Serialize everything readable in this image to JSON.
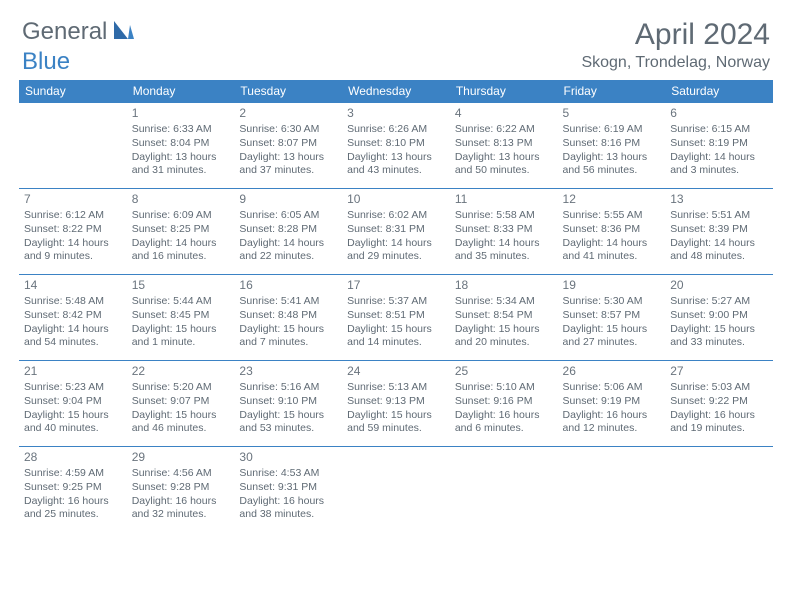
{
  "logo": {
    "general": "General",
    "blue": "Blue"
  },
  "title": "April 2024",
  "location": "Skogn, Trondelag, Norway",
  "colors": {
    "brand": "#3b82c4",
    "text": "#5f6a74",
    "bg": "#ffffff"
  },
  "weekdays": [
    "Sunday",
    "Monday",
    "Tuesday",
    "Wednesday",
    "Thursday",
    "Friday",
    "Saturday"
  ],
  "weeks": [
    [
      null,
      {
        "n": "1",
        "sr": "Sunrise: 6:33 AM",
        "ss": "Sunset: 8:04 PM",
        "d1": "Daylight: 13 hours",
        "d2": "and 31 minutes."
      },
      {
        "n": "2",
        "sr": "Sunrise: 6:30 AM",
        "ss": "Sunset: 8:07 PM",
        "d1": "Daylight: 13 hours",
        "d2": "and 37 minutes."
      },
      {
        "n": "3",
        "sr": "Sunrise: 6:26 AM",
        "ss": "Sunset: 8:10 PM",
        "d1": "Daylight: 13 hours",
        "d2": "and 43 minutes."
      },
      {
        "n": "4",
        "sr": "Sunrise: 6:22 AM",
        "ss": "Sunset: 8:13 PM",
        "d1": "Daylight: 13 hours",
        "d2": "and 50 minutes."
      },
      {
        "n": "5",
        "sr": "Sunrise: 6:19 AM",
        "ss": "Sunset: 8:16 PM",
        "d1": "Daylight: 13 hours",
        "d2": "and 56 minutes."
      },
      {
        "n": "6",
        "sr": "Sunrise: 6:15 AM",
        "ss": "Sunset: 8:19 PM",
        "d1": "Daylight: 14 hours",
        "d2": "and 3 minutes."
      }
    ],
    [
      {
        "n": "7",
        "sr": "Sunrise: 6:12 AM",
        "ss": "Sunset: 8:22 PM",
        "d1": "Daylight: 14 hours",
        "d2": "and 9 minutes."
      },
      {
        "n": "8",
        "sr": "Sunrise: 6:09 AM",
        "ss": "Sunset: 8:25 PM",
        "d1": "Daylight: 14 hours",
        "d2": "and 16 minutes."
      },
      {
        "n": "9",
        "sr": "Sunrise: 6:05 AM",
        "ss": "Sunset: 8:28 PM",
        "d1": "Daylight: 14 hours",
        "d2": "and 22 minutes."
      },
      {
        "n": "10",
        "sr": "Sunrise: 6:02 AM",
        "ss": "Sunset: 8:31 PM",
        "d1": "Daylight: 14 hours",
        "d2": "and 29 minutes."
      },
      {
        "n": "11",
        "sr": "Sunrise: 5:58 AM",
        "ss": "Sunset: 8:33 PM",
        "d1": "Daylight: 14 hours",
        "d2": "and 35 minutes."
      },
      {
        "n": "12",
        "sr": "Sunrise: 5:55 AM",
        "ss": "Sunset: 8:36 PM",
        "d1": "Daylight: 14 hours",
        "d2": "and 41 minutes."
      },
      {
        "n": "13",
        "sr": "Sunrise: 5:51 AM",
        "ss": "Sunset: 8:39 PM",
        "d1": "Daylight: 14 hours",
        "d2": "and 48 minutes."
      }
    ],
    [
      {
        "n": "14",
        "sr": "Sunrise: 5:48 AM",
        "ss": "Sunset: 8:42 PM",
        "d1": "Daylight: 14 hours",
        "d2": "and 54 minutes."
      },
      {
        "n": "15",
        "sr": "Sunrise: 5:44 AM",
        "ss": "Sunset: 8:45 PM",
        "d1": "Daylight: 15 hours",
        "d2": "and 1 minute."
      },
      {
        "n": "16",
        "sr": "Sunrise: 5:41 AM",
        "ss": "Sunset: 8:48 PM",
        "d1": "Daylight: 15 hours",
        "d2": "and 7 minutes."
      },
      {
        "n": "17",
        "sr": "Sunrise: 5:37 AM",
        "ss": "Sunset: 8:51 PM",
        "d1": "Daylight: 15 hours",
        "d2": "and 14 minutes."
      },
      {
        "n": "18",
        "sr": "Sunrise: 5:34 AM",
        "ss": "Sunset: 8:54 PM",
        "d1": "Daylight: 15 hours",
        "d2": "and 20 minutes."
      },
      {
        "n": "19",
        "sr": "Sunrise: 5:30 AM",
        "ss": "Sunset: 8:57 PM",
        "d1": "Daylight: 15 hours",
        "d2": "and 27 minutes."
      },
      {
        "n": "20",
        "sr": "Sunrise: 5:27 AM",
        "ss": "Sunset: 9:00 PM",
        "d1": "Daylight: 15 hours",
        "d2": "and 33 minutes."
      }
    ],
    [
      {
        "n": "21",
        "sr": "Sunrise: 5:23 AM",
        "ss": "Sunset: 9:04 PM",
        "d1": "Daylight: 15 hours",
        "d2": "and 40 minutes."
      },
      {
        "n": "22",
        "sr": "Sunrise: 5:20 AM",
        "ss": "Sunset: 9:07 PM",
        "d1": "Daylight: 15 hours",
        "d2": "and 46 minutes."
      },
      {
        "n": "23",
        "sr": "Sunrise: 5:16 AM",
        "ss": "Sunset: 9:10 PM",
        "d1": "Daylight: 15 hours",
        "d2": "and 53 minutes."
      },
      {
        "n": "24",
        "sr": "Sunrise: 5:13 AM",
        "ss": "Sunset: 9:13 PM",
        "d1": "Daylight: 15 hours",
        "d2": "and 59 minutes."
      },
      {
        "n": "25",
        "sr": "Sunrise: 5:10 AM",
        "ss": "Sunset: 9:16 PM",
        "d1": "Daylight: 16 hours",
        "d2": "and 6 minutes."
      },
      {
        "n": "26",
        "sr": "Sunrise: 5:06 AM",
        "ss": "Sunset: 9:19 PM",
        "d1": "Daylight: 16 hours",
        "d2": "and 12 minutes."
      },
      {
        "n": "27",
        "sr": "Sunrise: 5:03 AM",
        "ss": "Sunset: 9:22 PM",
        "d1": "Daylight: 16 hours",
        "d2": "and 19 minutes."
      }
    ],
    [
      {
        "n": "28",
        "sr": "Sunrise: 4:59 AM",
        "ss": "Sunset: 9:25 PM",
        "d1": "Daylight: 16 hours",
        "d2": "and 25 minutes."
      },
      {
        "n": "29",
        "sr": "Sunrise: 4:56 AM",
        "ss": "Sunset: 9:28 PM",
        "d1": "Daylight: 16 hours",
        "d2": "and 32 minutes."
      },
      {
        "n": "30",
        "sr": "Sunrise: 4:53 AM",
        "ss": "Sunset: 9:31 PM",
        "d1": "Daylight: 16 hours",
        "d2": "and 38 minutes."
      },
      null,
      null,
      null,
      null
    ]
  ]
}
